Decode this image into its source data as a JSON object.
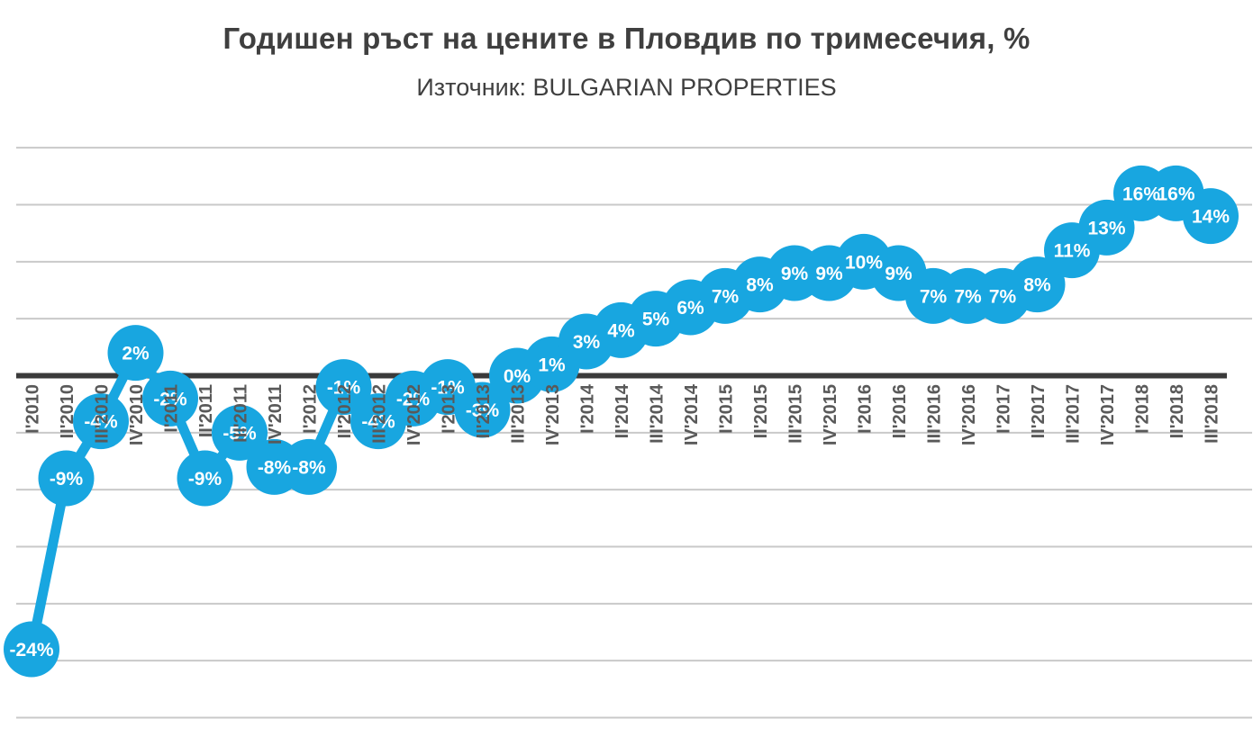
{
  "header": {
    "title": "Годишен ръст на цените в Пловдив по тримесечия, %",
    "subtitle": "Източник: BULGARIAN PROPERTIES"
  },
  "chart_data": {
    "type": "line",
    "title": "Годишен ръст на цените в Пловдив по тримесечия, %",
    "subtitle": "Източник: BULGARIAN PROPERTIES",
    "categories": [
      "I'2010",
      "II'2010",
      "III'2010",
      "IV'2010",
      "I'2011",
      "II'2011",
      "III'2011",
      "IV'2011",
      "I'2012",
      "II'2012",
      "III'2012",
      "IV'2012",
      "I'2013",
      "II'2013",
      "III'2013",
      "IV'2013",
      "I'2014",
      "II'2014",
      "III'2014",
      "IV'2014",
      "I'2015",
      "II'2015",
      "III'2015",
      "IV'2015",
      "I'2016",
      "II'2016",
      "III'2016",
      "IV'2016",
      "I'2017",
      "II'2017",
      "III'2017",
      "IV'2017",
      "I'2018",
      "II'2018",
      "III'2018"
    ],
    "values": [
      -24,
      -9,
      -4,
      2,
      -2,
      -9,
      -5,
      -8,
      -8,
      -1,
      -4,
      -2,
      -1,
      -3,
      0,
      1,
      3,
      4,
      5,
      6,
      7,
      8,
      9,
      9,
      10,
      9,
      7,
      7,
      7,
      8,
      11,
      13,
      16,
      16,
      14
    ],
    "point_labels": [
      "-24%",
      "-9%",
      "-4%",
      "2%",
      "-2%",
      "-9%",
      "-5%",
      "-8%",
      "-8%",
      "-1%",
      "-4%",
      "-2%",
      "-1%",
      "-3%",
      "0%",
      "1%",
      "3%",
      "4%",
      "5%",
      "6%",
      "7%",
      "8%",
      "9%",
      "9%",
      "10%",
      "9%",
      "7%",
      "7%",
      "7%",
      "8%",
      "11%",
      "13%",
      "16%",
      "16%",
      "14%"
    ],
    "ylim": [
      -30,
      20
    ],
    "grid_step": 5,
    "grid_on": true,
    "legend": "none",
    "xlabel": "",
    "ylabel": "",
    "colors": {
      "marker": "#18a6e0",
      "line": "#18a6e0",
      "point_label_text": "#ffffff",
      "axis_label_text": "#595959",
      "gridline": "#c9c9c9",
      "zero_axis": "#3a3a3a",
      "title_text": "#3f3f3f"
    }
  }
}
